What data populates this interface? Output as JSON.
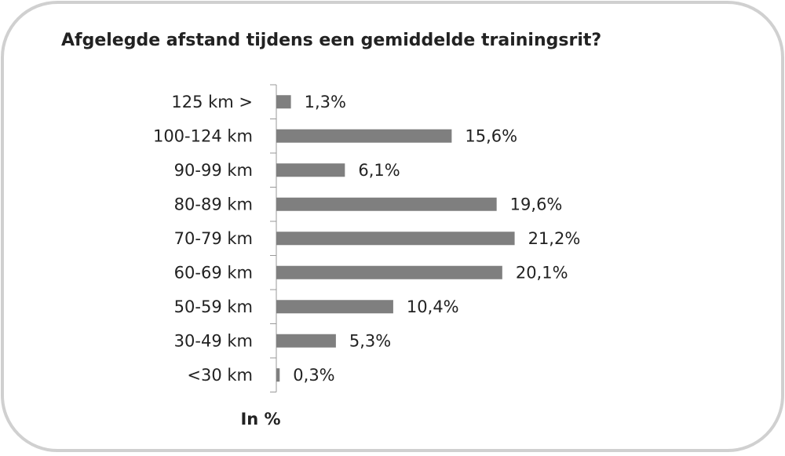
{
  "chart_data": {
    "type": "barh",
    "title": "Afgelegde afstand tijdens een gemiddelde trainingsrit?",
    "xlabel": "In %",
    "categories": [
      "125 km >",
      "100-124 km",
      "90-99 km",
      "80-89 km",
      "70-79 km",
      "60-69 km",
      "50-59 km",
      "30-49 km",
      "<30 km"
    ],
    "values": [
      1.3,
      15.6,
      6.1,
      19.6,
      21.2,
      20.1,
      10.4,
      5.3,
      0.3
    ],
    "value_labels": [
      "1,3%",
      "15,6%",
      "6,1%",
      "19,6%",
      "21,2%",
      "20,1%",
      "10,4%",
      "5,3%",
      "0,3%"
    ],
    "color": "#7f7f7f",
    "xlim": [
      0,
      25
    ]
  }
}
